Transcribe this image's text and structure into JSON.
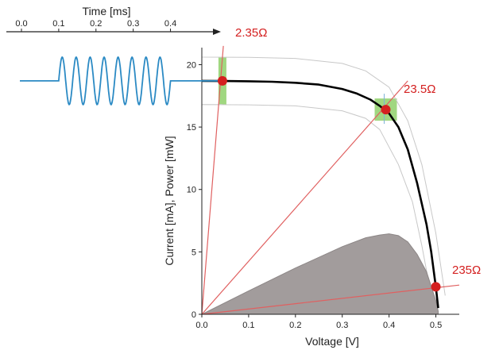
{
  "chart_data": {
    "type": "line",
    "title": "",
    "xlabel": "Voltage [V]",
    "ylabel": "Current [mA], Power [mW]",
    "xlim": [
      0,
      0.55
    ],
    "ylim": [
      0,
      22
    ],
    "x_ticks": [
      "0.0",
      "0.1",
      "0.2",
      "0.3",
      "0.4",
      "0.5"
    ],
    "y_ticks": [
      "0",
      "5",
      "10",
      "15",
      "20"
    ],
    "grid": false,
    "time_axis": {
      "label": "Time [ms]",
      "xlim": [
        0,
        0.45
      ],
      "ticks": [
        "0.0",
        "0.1",
        "0.2",
        "0.3",
        "0.4"
      ]
    },
    "signal": {
      "baseline_mA": 18.7,
      "amplitude_mA": 1.9,
      "start_ms": 0.1,
      "end_ms": 0.4,
      "cycles": 8
    },
    "iv_curve": {
      "color": "#000000",
      "x": [
        0,
        0.05,
        0.1,
        0.15,
        0.2,
        0.25,
        0.3,
        0.33,
        0.36,
        0.38,
        0.4,
        0.42,
        0.44,
        0.46,
        0.48,
        0.49,
        0.5,
        0.505
      ],
      "y": [
        18.7,
        18.69,
        18.67,
        18.63,
        18.55,
        18.4,
        18.05,
        17.7,
        17.2,
        16.7,
        16.1,
        15.0,
        13.2,
        10.5,
        7.2,
        5.0,
        2.2,
        0.5
      ]
    },
    "iv_envelope_upper": {
      "color": "#c8c8c8",
      "x": [
        0,
        0.1,
        0.2,
        0.3,
        0.35,
        0.4,
        0.44,
        0.47,
        0.5,
        0.52
      ],
      "y": [
        20.6,
        20.58,
        20.5,
        20.1,
        19.5,
        18.2,
        15.5,
        12.0,
        6.5,
        1.5
      ]
    },
    "iv_envelope_lower": {
      "color": "#c8c8c8",
      "x": [
        0,
        0.1,
        0.2,
        0.3,
        0.35,
        0.38,
        0.42,
        0.45,
        0.47,
        0.49
      ],
      "y": [
        16.8,
        16.78,
        16.7,
        16.3,
        15.7,
        14.8,
        12.0,
        9.0,
        5.5,
        1.5
      ]
    },
    "power_curve": {
      "color": "#a29c9c",
      "x": [
        0,
        0.1,
        0.2,
        0.3,
        0.35,
        0.38,
        0.4,
        0.42,
        0.44,
        0.46,
        0.48,
        0.5,
        0.505
      ],
      "y": [
        0,
        1.87,
        3.71,
        5.42,
        6.13,
        6.35,
        6.45,
        6.3,
        5.8,
        4.8,
        3.4,
        1.1,
        0.25
      ]
    },
    "load_lines": [
      {
        "label": "2.35Ω",
        "resistance_ohm": 2.35,
        "end": [
          0.046,
          21.5
        ],
        "operating_point": [
          0.044,
          18.7
        ]
      },
      {
        "label": "23.5Ω",
        "resistance_ohm": 23.5,
        "end": [
          0.44,
          18.7
        ],
        "operating_point": [
          0.393,
          16.4
        ]
      },
      {
        "label": "235Ω",
        "resistance_ohm": 235,
        "end": [
          0.55,
          2.34
        ],
        "operating_point": [
          0.5,
          2.2
        ]
      }
    ],
    "operating_point_color": "#d42020",
    "load_line_color": "#e06060",
    "highlight_color": "#8fd06a",
    "signal_color": "#2b8ac4"
  }
}
